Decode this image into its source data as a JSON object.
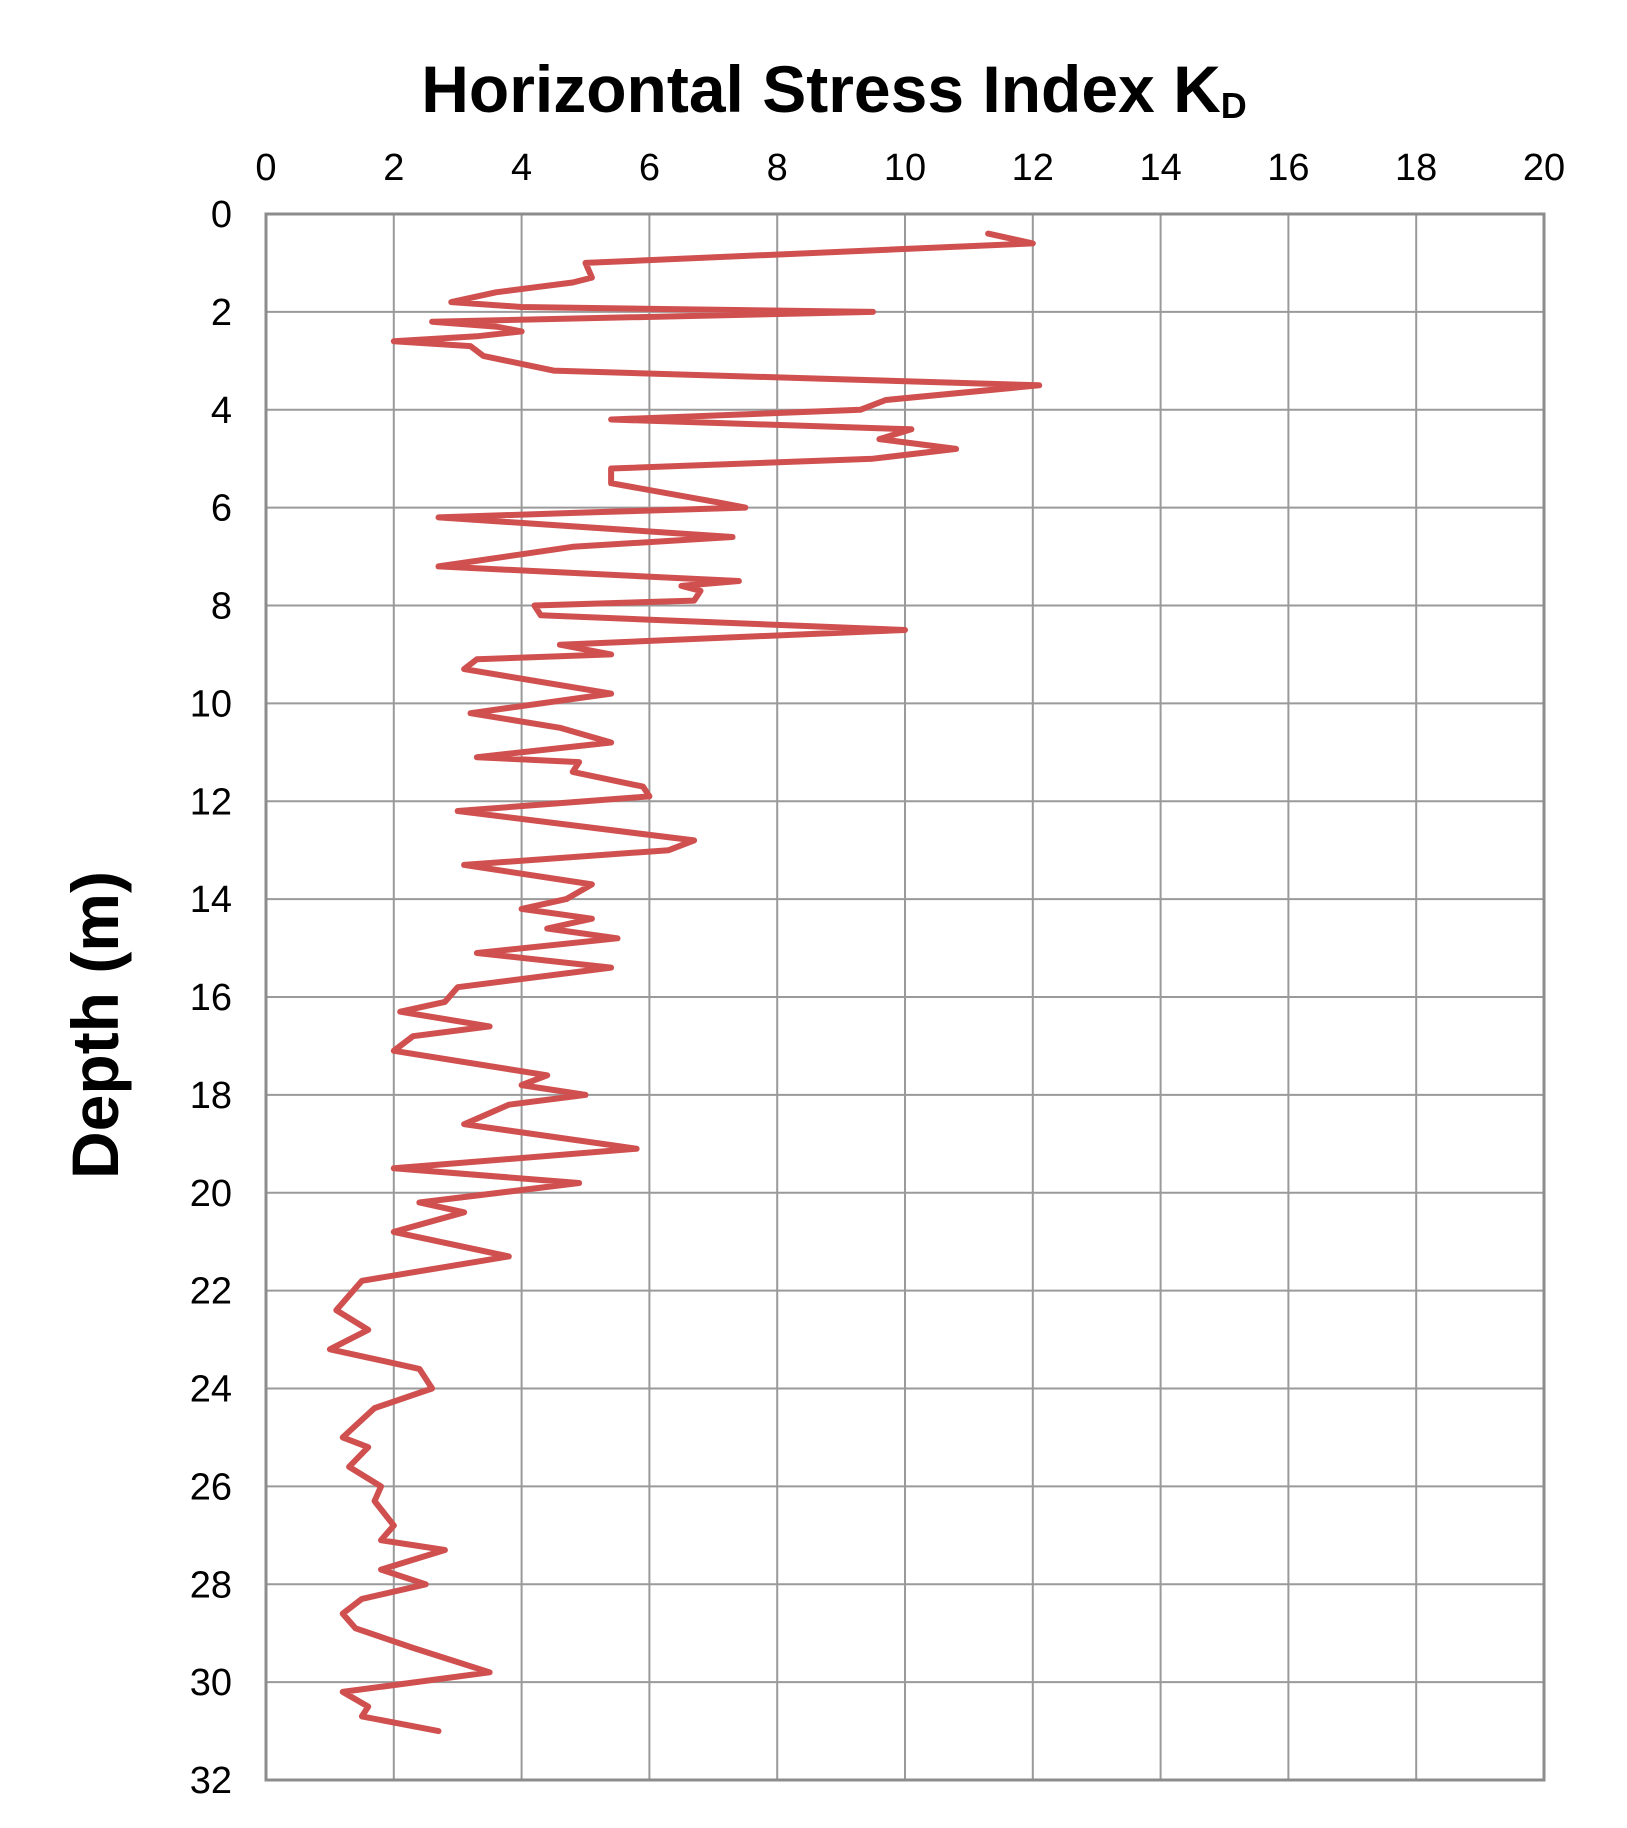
{
  "chart_data": {
    "type": "line",
    "title": "Horizontal Stress Index K",
    "title_subscript": "D",
    "xlabel": "",
    "ylabel": "Depth (m)",
    "x_axis_position": "top",
    "y_axis_inverted": true,
    "xlim": [
      0,
      20
    ],
    "ylim": [
      0,
      32
    ],
    "x_ticks": [
      "0",
      "2",
      "4",
      "6",
      "8",
      "10",
      "12",
      "14",
      "16",
      "18",
      "20"
    ],
    "y_ticks": [
      "0",
      "2",
      "4",
      "6",
      "8",
      "10",
      "12",
      "14",
      "16",
      "18",
      "20",
      "22",
      "24",
      "26",
      "28",
      "30",
      "32"
    ],
    "grid": true,
    "series_color": "#d05050",
    "series": [
      {
        "name": "",
        "points": [
          [
            11.3,
            0.4
          ],
          [
            12.0,
            0.6
          ],
          [
            5.0,
            1.0
          ],
          [
            5.1,
            1.3
          ],
          [
            4.8,
            1.4
          ],
          [
            3.6,
            1.6
          ],
          [
            2.9,
            1.8
          ],
          [
            4.0,
            1.9
          ],
          [
            9.5,
            2.0
          ],
          [
            2.6,
            2.2
          ],
          [
            3.6,
            2.3
          ],
          [
            4.0,
            2.4
          ],
          [
            3.3,
            2.5
          ],
          [
            2.0,
            2.6
          ],
          [
            3.2,
            2.7
          ],
          [
            3.4,
            2.9
          ],
          [
            4.5,
            3.2
          ],
          [
            12.1,
            3.5
          ],
          [
            9.7,
            3.8
          ],
          [
            9.3,
            4.0
          ],
          [
            5.4,
            4.2
          ],
          [
            10.1,
            4.4
          ],
          [
            9.6,
            4.6
          ],
          [
            10.8,
            4.8
          ],
          [
            9.5,
            5.0
          ],
          [
            5.4,
            5.2
          ],
          [
            5.4,
            5.5
          ],
          [
            7.1,
            5.9
          ],
          [
            7.5,
            6.0
          ],
          [
            5.0,
            6.1
          ],
          [
            2.7,
            6.2
          ],
          [
            7.3,
            6.6
          ],
          [
            4.8,
            6.8
          ],
          [
            2.7,
            7.2
          ],
          [
            7.4,
            7.5
          ],
          [
            6.5,
            7.6
          ],
          [
            6.8,
            7.7
          ],
          [
            6.7,
            7.9
          ],
          [
            4.2,
            8.0
          ],
          [
            4.3,
            8.2
          ],
          [
            10.0,
            8.5
          ],
          [
            4.6,
            8.8
          ],
          [
            5.4,
            9.0
          ],
          [
            3.3,
            9.1
          ],
          [
            3.1,
            9.3
          ],
          [
            5.4,
            9.8
          ],
          [
            3.2,
            10.2
          ],
          [
            4.6,
            10.5
          ],
          [
            5.4,
            10.8
          ],
          [
            3.3,
            11.1
          ],
          [
            4.9,
            11.2
          ],
          [
            4.8,
            11.4
          ],
          [
            5.9,
            11.7
          ],
          [
            6.0,
            11.9
          ],
          [
            3.0,
            12.2
          ],
          [
            6.7,
            12.8
          ],
          [
            6.3,
            13.0
          ],
          [
            3.1,
            13.3
          ],
          [
            5.1,
            13.7
          ],
          [
            4.7,
            14.0
          ],
          [
            4.0,
            14.2
          ],
          [
            5.1,
            14.4
          ],
          [
            4.4,
            14.6
          ],
          [
            5.5,
            14.8
          ],
          [
            3.3,
            15.1
          ],
          [
            5.4,
            15.4
          ],
          [
            3.0,
            15.8
          ],
          [
            2.8,
            16.1
          ],
          [
            2.1,
            16.3
          ],
          [
            3.5,
            16.6
          ],
          [
            2.3,
            16.8
          ],
          [
            2.0,
            17.1
          ],
          [
            4.4,
            17.6
          ],
          [
            4.0,
            17.8
          ],
          [
            5.0,
            18.0
          ],
          [
            3.8,
            18.2
          ],
          [
            3.1,
            18.6
          ],
          [
            5.8,
            19.1
          ],
          [
            2.0,
            19.5
          ],
          [
            4.9,
            19.8
          ],
          [
            2.4,
            20.2
          ],
          [
            3.1,
            20.4
          ],
          [
            2.0,
            20.8
          ],
          [
            3.8,
            21.3
          ],
          [
            1.5,
            21.8
          ],
          [
            1.1,
            22.4
          ],
          [
            1.6,
            22.8
          ],
          [
            1.0,
            23.2
          ],
          [
            2.4,
            23.6
          ],
          [
            2.6,
            24.0
          ],
          [
            1.7,
            24.4
          ],
          [
            1.2,
            25.0
          ],
          [
            1.6,
            25.2
          ],
          [
            1.3,
            25.6
          ],
          [
            1.8,
            26.0
          ],
          [
            1.7,
            26.3
          ],
          [
            2.0,
            26.8
          ],
          [
            1.8,
            27.1
          ],
          [
            2.8,
            27.3
          ],
          [
            1.8,
            27.7
          ],
          [
            2.5,
            28.0
          ],
          [
            1.5,
            28.3
          ],
          [
            1.2,
            28.6
          ],
          [
            1.4,
            28.9
          ],
          [
            2.3,
            29.3
          ],
          [
            3.5,
            29.8
          ],
          [
            1.2,
            30.2
          ],
          [
            1.6,
            30.5
          ],
          [
            1.5,
            30.7
          ],
          [
            2.7,
            31.0
          ]
        ]
      }
    ]
  }
}
